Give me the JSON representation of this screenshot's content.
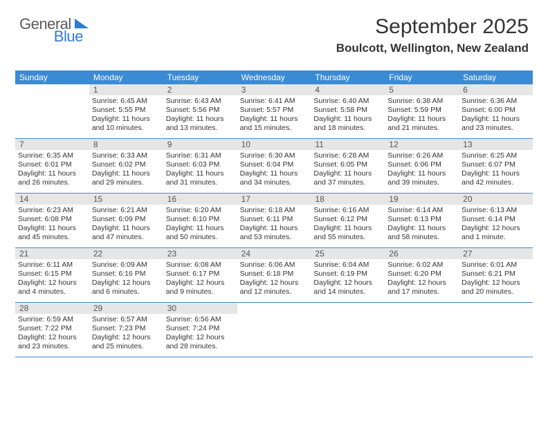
{
  "logo": {
    "text_general": "General",
    "text_blue": "Blue",
    "icon_color": "#2e7cd6"
  },
  "title": "September 2025",
  "subtitle": "Boulcott, Wellington, New Zealand",
  "colors": {
    "header_bar": "#3b8bd4",
    "day_header_bg": "#e6e6e6",
    "row_border": "#3b8bd4",
    "text": "#333333",
    "background": "#ffffff"
  },
  "weekdays": [
    "Sunday",
    "Monday",
    "Tuesday",
    "Wednesday",
    "Thursday",
    "Friday",
    "Saturday"
  ],
  "weeks": [
    [
      {
        "n": "",
        "lines": []
      },
      {
        "n": "1",
        "lines": [
          "Sunrise: 6:45 AM",
          "Sunset: 5:55 PM",
          "Daylight: 11 hours",
          "and 10 minutes."
        ]
      },
      {
        "n": "2",
        "lines": [
          "Sunrise: 6:43 AM",
          "Sunset: 5:56 PM",
          "Daylight: 11 hours",
          "and 13 minutes."
        ]
      },
      {
        "n": "3",
        "lines": [
          "Sunrise: 6:41 AM",
          "Sunset: 5:57 PM",
          "Daylight: 11 hours",
          "and 15 minutes."
        ]
      },
      {
        "n": "4",
        "lines": [
          "Sunrise: 6:40 AM",
          "Sunset: 5:58 PM",
          "Daylight: 11 hours",
          "and 18 minutes."
        ]
      },
      {
        "n": "5",
        "lines": [
          "Sunrise: 6:38 AM",
          "Sunset: 5:59 PM",
          "Daylight: 11 hours",
          "and 21 minutes."
        ]
      },
      {
        "n": "6",
        "lines": [
          "Sunrise: 6:36 AM",
          "Sunset: 6:00 PM",
          "Daylight: 11 hours",
          "and 23 minutes."
        ]
      }
    ],
    [
      {
        "n": "7",
        "lines": [
          "Sunrise: 6:35 AM",
          "Sunset: 6:01 PM",
          "Daylight: 11 hours",
          "and 26 minutes."
        ]
      },
      {
        "n": "8",
        "lines": [
          "Sunrise: 6:33 AM",
          "Sunset: 6:02 PM",
          "Daylight: 11 hours",
          "and 29 minutes."
        ]
      },
      {
        "n": "9",
        "lines": [
          "Sunrise: 6:31 AM",
          "Sunset: 6:03 PM",
          "Daylight: 11 hours",
          "and 31 minutes."
        ]
      },
      {
        "n": "10",
        "lines": [
          "Sunrise: 6:30 AM",
          "Sunset: 6:04 PM",
          "Daylight: 11 hours",
          "and 34 minutes."
        ]
      },
      {
        "n": "11",
        "lines": [
          "Sunrise: 6:28 AM",
          "Sunset: 6:05 PM",
          "Daylight: 11 hours",
          "and 37 minutes."
        ]
      },
      {
        "n": "12",
        "lines": [
          "Sunrise: 6:26 AM",
          "Sunset: 6:06 PM",
          "Daylight: 11 hours",
          "and 39 minutes."
        ]
      },
      {
        "n": "13",
        "lines": [
          "Sunrise: 6:25 AM",
          "Sunset: 6:07 PM",
          "Daylight: 11 hours",
          "and 42 minutes."
        ]
      }
    ],
    [
      {
        "n": "14",
        "lines": [
          "Sunrise: 6:23 AM",
          "Sunset: 6:08 PM",
          "Daylight: 11 hours",
          "and 45 minutes."
        ]
      },
      {
        "n": "15",
        "lines": [
          "Sunrise: 6:21 AM",
          "Sunset: 6:09 PM",
          "Daylight: 11 hours",
          "and 47 minutes."
        ]
      },
      {
        "n": "16",
        "lines": [
          "Sunrise: 6:20 AM",
          "Sunset: 6:10 PM",
          "Daylight: 11 hours",
          "and 50 minutes."
        ]
      },
      {
        "n": "17",
        "lines": [
          "Sunrise: 6:18 AM",
          "Sunset: 6:11 PM",
          "Daylight: 11 hours",
          "and 53 minutes."
        ]
      },
      {
        "n": "18",
        "lines": [
          "Sunrise: 6:16 AM",
          "Sunset: 6:12 PM",
          "Daylight: 11 hours",
          "and 55 minutes."
        ]
      },
      {
        "n": "19",
        "lines": [
          "Sunrise: 6:14 AM",
          "Sunset: 6:13 PM",
          "Daylight: 11 hours",
          "and 58 minutes."
        ]
      },
      {
        "n": "20",
        "lines": [
          "Sunrise: 6:13 AM",
          "Sunset: 6:14 PM",
          "Daylight: 12 hours",
          "and 1 minute."
        ]
      }
    ],
    [
      {
        "n": "21",
        "lines": [
          "Sunrise: 6:11 AM",
          "Sunset: 6:15 PM",
          "Daylight: 12 hours",
          "and 4 minutes."
        ]
      },
      {
        "n": "22",
        "lines": [
          "Sunrise: 6:09 AM",
          "Sunset: 6:16 PM",
          "Daylight: 12 hours",
          "and 6 minutes."
        ]
      },
      {
        "n": "23",
        "lines": [
          "Sunrise: 6:08 AM",
          "Sunset: 6:17 PM",
          "Daylight: 12 hours",
          "and 9 minutes."
        ]
      },
      {
        "n": "24",
        "lines": [
          "Sunrise: 6:06 AM",
          "Sunset: 6:18 PM",
          "Daylight: 12 hours",
          "and 12 minutes."
        ]
      },
      {
        "n": "25",
        "lines": [
          "Sunrise: 6:04 AM",
          "Sunset: 6:19 PM",
          "Daylight: 12 hours",
          "and 14 minutes."
        ]
      },
      {
        "n": "26",
        "lines": [
          "Sunrise: 6:02 AM",
          "Sunset: 6:20 PM",
          "Daylight: 12 hours",
          "and 17 minutes."
        ]
      },
      {
        "n": "27",
        "lines": [
          "Sunrise: 6:01 AM",
          "Sunset: 6:21 PM",
          "Daylight: 12 hours",
          "and 20 minutes."
        ]
      }
    ],
    [
      {
        "n": "28",
        "lines": [
          "Sunrise: 6:59 AM",
          "Sunset: 7:22 PM",
          "Daylight: 12 hours",
          "and 23 minutes."
        ]
      },
      {
        "n": "29",
        "lines": [
          "Sunrise: 6:57 AM",
          "Sunset: 7:23 PM",
          "Daylight: 12 hours",
          "and 25 minutes."
        ]
      },
      {
        "n": "30",
        "lines": [
          "Sunrise: 6:56 AM",
          "Sunset: 7:24 PM",
          "Daylight: 12 hours",
          "and 28 minutes."
        ]
      },
      {
        "n": "",
        "lines": []
      },
      {
        "n": "",
        "lines": []
      },
      {
        "n": "",
        "lines": []
      },
      {
        "n": "",
        "lines": []
      }
    ]
  ]
}
